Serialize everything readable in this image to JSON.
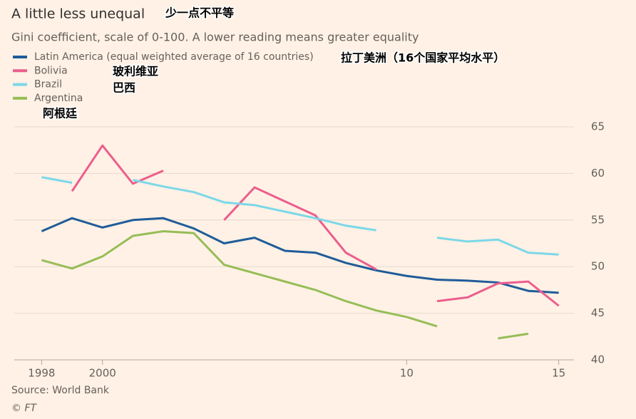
{
  "chart_data": {
    "type": "line",
    "title": "A little less unequal",
    "subtitle": "Gini coefficient, scale of 0-100. A lower reading means greater equality",
    "source": "Source: World Bank",
    "credit": "© FT",
    "annotations": [
      "少一点不平等",
      "拉丁美洲（16个国家平均水平）",
      "玻利维亚",
      "巴西",
      "阿根廷"
    ],
    "x": [
      1998,
      1999,
      2000,
      2001,
      2002,
      2003,
      2004,
      2005,
      2006,
      2007,
      2008,
      2009,
      2010,
      2011,
      2012,
      2013,
      2014,
      2015
    ],
    "series": [
      {
        "name": "Latin America (equal weighted average of 16 countries)",
        "color": "#1f5c99",
        "values": [
          53.8,
          55.2,
          54.2,
          55.0,
          55.2,
          54.1,
          52.5,
          53.1,
          51.7,
          51.5,
          50.4,
          49.6,
          49.0,
          48.6,
          48.5,
          48.3,
          47.4,
          47.2
        ]
      },
      {
        "name": "Bolivia",
        "color": "#eb5e8d",
        "values": [
          null,
          58.1,
          63.0,
          58.9,
          60.3,
          null,
          55.0,
          58.5,
          57.0,
          55.5,
          51.5,
          49.7,
          null,
          46.3,
          46.7,
          48.2,
          48.4,
          45.8
        ]
      },
      {
        "name": "Brazil",
        "color": "#7bd8e8",
        "values": [
          59.6,
          59.0,
          null,
          59.3,
          58.6,
          58.0,
          56.9,
          56.6,
          55.9,
          55.2,
          54.4,
          53.9,
          null,
          53.1,
          52.7,
          52.9,
          51.5,
          51.3
        ]
      },
      {
        "name": "Argentina",
        "color": "#96bd57",
        "values": [
          50.7,
          49.8,
          51.1,
          53.3,
          53.8,
          53.6,
          50.2,
          49.3,
          48.4,
          47.5,
          46.3,
          45.3,
          44.6,
          43.6,
          null,
          42.3,
          42.8,
          null
        ]
      }
    ],
    "xlim": [
      1997.1,
      2015.5
    ],
    "xticks": [
      1998,
      2000,
      {
        "value": 2010,
        "label": "10"
      },
      {
        "value": 2015,
        "label": "15"
      }
    ],
    "ylim": [
      40,
      65
    ],
    "yticks": [
      40,
      45,
      50,
      55,
      60,
      65
    ],
    "grid": true
  }
}
